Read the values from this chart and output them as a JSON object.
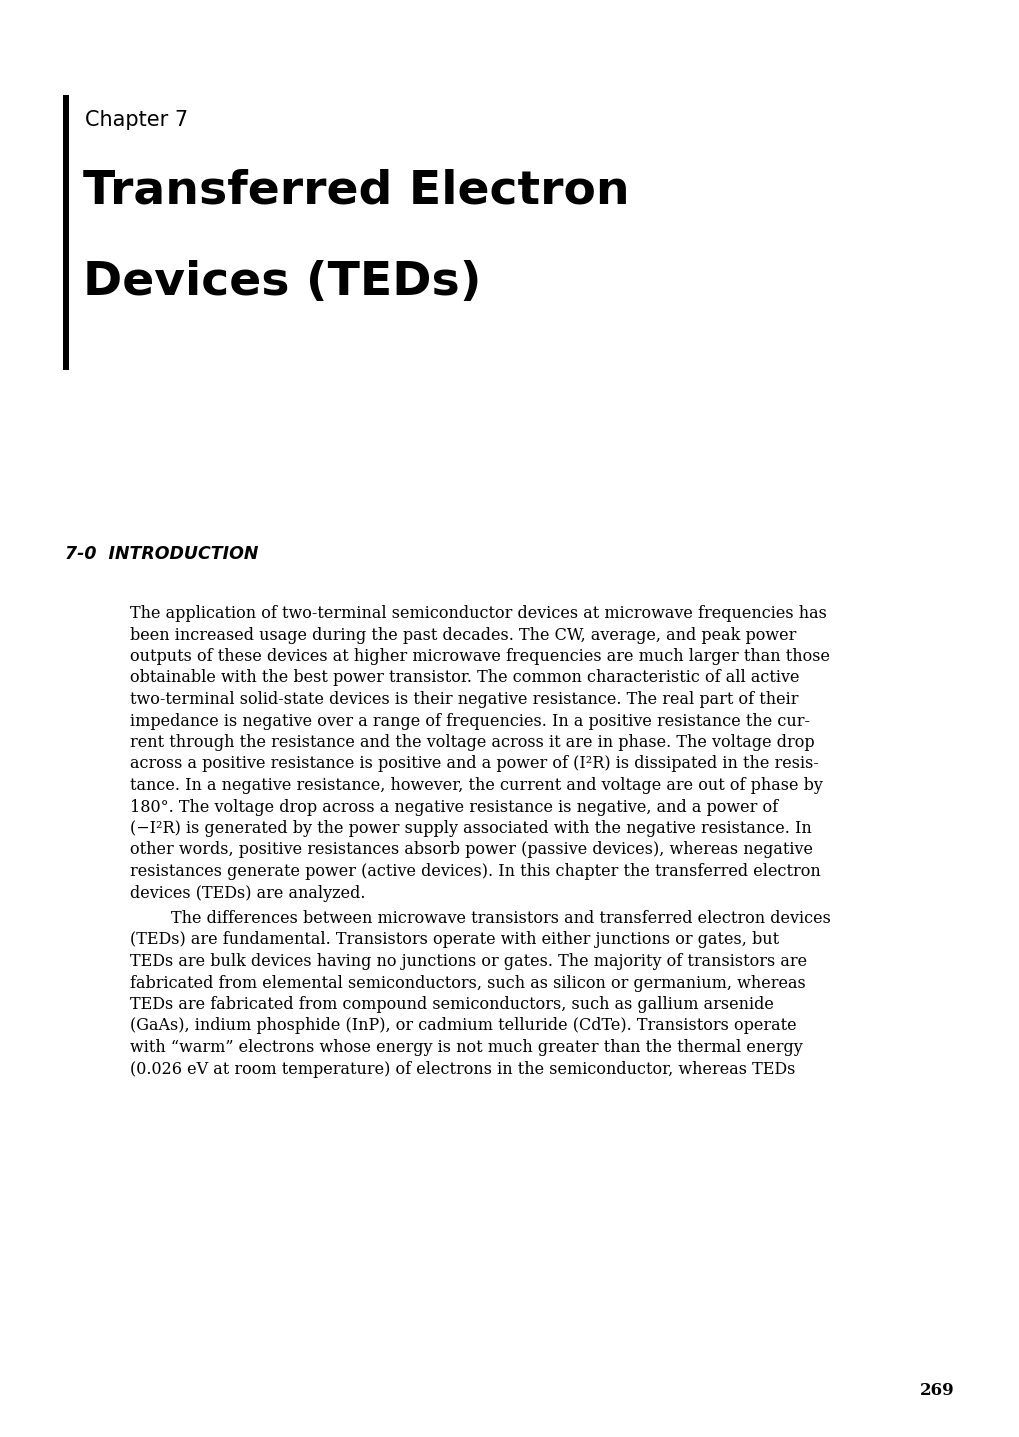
{
  "bg_color": "#ffffff",
  "chapter_label": "Chapter 7",
  "title_line1": "Transferred Electron",
  "title_line2": "Devices (TEDs)",
  "section_heading": "7-0  INTRODUCTION",
  "para1_lines": [
    "The application of two-terminal semiconductor devices at microwave frequencies has",
    "been increased usage during the past decades. The CW, average, and peak power",
    "outputs of these devices at higher microwave frequencies are much larger than those",
    "obtainable with the best power transistor. The common characteristic of all active",
    "two-terminal solid-state devices is their negative resistance. The real part of their",
    "impedance is negative over a range of frequencies. In a positive resistance the cur-",
    "rent through the resistance and the voltage across it are in phase. The voltage drop",
    "across a positive resistance is positive and a power of (I²R) is dissipated in the resis-",
    "tance. In a negative resistance, however, the current and voltage are out of phase by",
    "180°. The voltage drop across a negative resistance is negative, and a power of",
    "(−I²R) is generated by the power supply associated with the negative resistance. In",
    "other words, positive resistances absorb power (passive devices), whereas negative",
    "resistances generate power (active devices). In this chapter the transferred electron",
    "devices (TEDs) are analyzed."
  ],
  "para2_lines": [
    "        The differences between microwave transistors and transferred electron devices",
    "(TEDs) are fundamental. Transistors operate with either junctions or gates, but",
    "TEDs are bulk devices having no junctions or gates. The majority of transistors are",
    "fabricated from elemental semiconductors, such as silicon or germanium, whereas",
    "TEDs are fabricated from compound semiconductors, such as gallium arsenide",
    "(GaAs), indium phosphide (InP), or cadmium telluride (CdTe). Transistors operate",
    "with “warm” electrons whose energy is not much greater than the thermal energy",
    "(0.026 eV at room temperature) of electrons in the semiconductor, whereas TEDs"
  ],
  "page_number": "269",
  "chapter_fontsize": 15,
  "title_fontsize": 34,
  "section_fontsize": 12.5,
  "body_fontsize": 11.5,
  "page_num_fontsize": 12
}
